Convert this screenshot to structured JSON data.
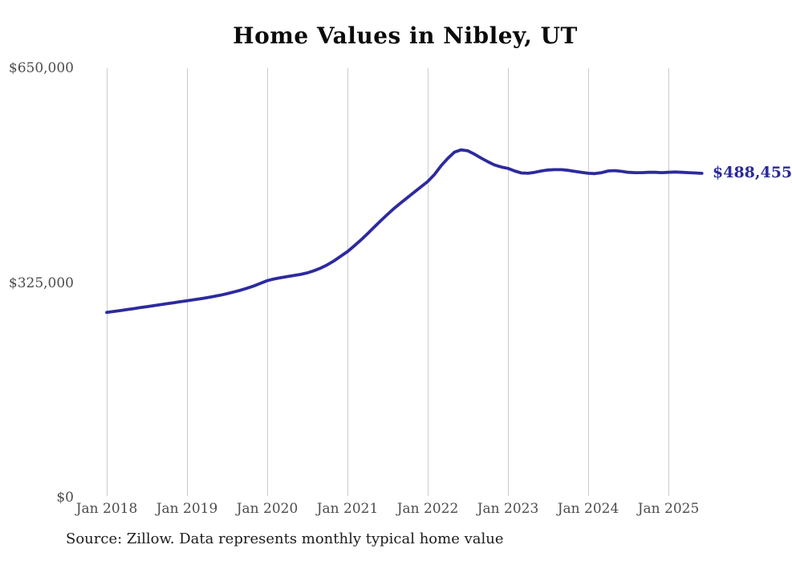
{
  "chart_data": {
    "type": "line",
    "title": "Home Values in Nibley, UT",
    "source_note": "Source: Zillow. Data represents monthly typical home value",
    "end_label": "$488,455",
    "final_value": 488455,
    "frequency": "monthly",
    "start": "Jan 2018",
    "end": "Jun 2025",
    "line_color": "#2d2a9e",
    "grid": "vertical-only",
    "legend": "none",
    "ylim": [
      0,
      650000
    ],
    "y_ticks": [
      {
        "label": "$650,000",
        "value": 650000
      },
      {
        "label": "$325,000",
        "value": 325000
      },
      {
        "label": "$0",
        "value": 0
      }
    ],
    "x_tick_labels": [
      "Jan 2018",
      "Jan 2019",
      "Jan 2020",
      "Jan 2021",
      "Jan 2022",
      "Jan 2023",
      "Jan 2024",
      "Jan 2025"
    ],
    "series": [
      {
        "name": "Typical home value",
        "values": [
          278000,
          279300,
          280700,
          282100,
          283600,
          285100,
          286600,
          288100,
          289600,
          291100,
          292600,
          294100,
          295500,
          297000,
          298500,
          300200,
          302000,
          304000,
          306300,
          308800,
          311500,
          314500,
          318000,
          322000,
          326000,
          328500,
          330500,
          332200,
          333800,
          335500,
          337800,
          341000,
          345000,
          350000,
          356000,
          363000,
          370000,
          378500,
          387500,
          397000,
          407000,
          417000,
          426500,
          435500,
          444000,
          452000,
          460000,
          468000,
          476000,
          486500,
          500000,
          511000,
          520500,
          524000,
          522500,
          517500,
          511500,
          506000,
          501000,
          498000,
          496000,
          492000,
          489000,
          488500,
          490000,
          492000,
          493500,
          494000,
          494000,
          493000,
          491500,
          490000,
          488500,
          488000,
          489500,
          492000,
          492500,
          491500,
          490000,
          489500,
          489500,
          490000,
          490000,
          489500,
          490000,
          490500,
          490000,
          489500,
          489000,
          488455
        ]
      }
    ]
  }
}
